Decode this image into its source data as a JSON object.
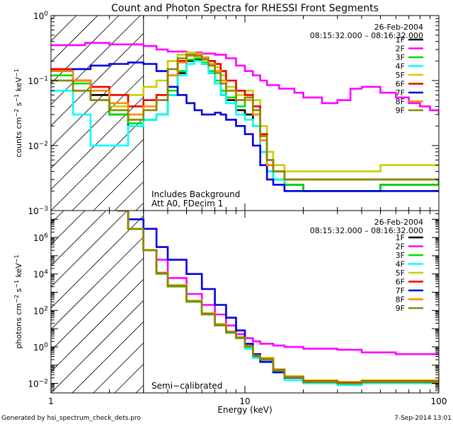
{
  "chart_data": [
    {
      "type": "line",
      "title": "Count and Photon Spectra for RHESSI Front Segments",
      "xlabel": "Energy (keV)",
      "ylabel": "counts cm^-2 s^-1 keV^-1",
      "ylabel_parts": {
        "base": "counts cm",
        "e1": "−2",
        "mid": " s",
        "e2": "−1",
        "tail": " keV",
        "e3": "−1"
      },
      "xscale": "log",
      "yscale": "log",
      "xlim": [
        1,
        100
      ],
      "ylim": [
        0.001,
        1
      ],
      "y_ticks": [
        {
          "base": "10",
          "exp": "−3"
        },
        {
          "base": "10",
          "exp": "−2"
        },
        {
          "base": "10",
          "exp": "−1"
        },
        {
          "base": "10",
          "exp": "0"
        }
      ],
      "x_ticks": [],
      "date": "26-Feb-2004",
      "time_range": "08:15:32.000 – 08:16:32.000",
      "annotations": [
        "Includes Background",
        "Att A0, FDecim 1"
      ],
      "legend_position": "top-right",
      "hatch_max_energy": 3,
      "series": [
        {
          "name": "1F",
          "color": "#000000",
          "x": [
            1,
            1.3,
            1.6,
            2,
            2.5,
            3,
            3.5,
            4,
            4.5,
            5,
            5.5,
            6,
            6.5,
            7,
            7.5,
            8,
            9,
            10,
            11,
            12,
            13,
            14,
            16,
            20,
            30,
            50,
            100
          ],
          "y": [
            0.15,
            0.1,
            0.06,
            0.03,
            0.02,
            0.025,
            0.03,
            0.06,
            0.13,
            0.2,
            0.21,
            0.18,
            0.13,
            0.09,
            0.06,
            0.05,
            0.035,
            0.03,
            0.02,
            0.008,
            0.004,
            0.003,
            0.0025,
            0.002,
            0.002,
            0.0025,
            0.003
          ]
        },
        {
          "name": "2F",
          "color": "#ff00ff",
          "x": [
            1,
            1.5,
            2,
            3,
            3.5,
            4,
            5,
            6,
            7,
            8,
            9,
            10,
            11,
            12,
            13,
            15,
            18,
            20,
            25,
            30,
            35,
            40,
            50,
            60,
            70,
            80,
            90,
            100
          ],
          "y": [
            0.35,
            0.38,
            0.36,
            0.34,
            0.3,
            0.28,
            0.27,
            0.26,
            0.25,
            0.22,
            0.17,
            0.14,
            0.12,
            0.1,
            0.085,
            0.075,
            0.065,
            0.055,
            0.045,
            0.05,
            0.075,
            0.08,
            0.065,
            0.055,
            0.045,
            0.04,
            0.035,
            0.03
          ]
        },
        {
          "name": "3F",
          "color": "#00dd00",
          "x": [
            1,
            1.3,
            1.6,
            2,
            2.5,
            3,
            3.5,
            4,
            4.5,
            5,
            5.5,
            6,
            6.5,
            7,
            7.5,
            8,
            9,
            10,
            11,
            12,
            13,
            14,
            16,
            20,
            30,
            50,
            100
          ],
          "y": [
            0.12,
            0.09,
            0.05,
            0.03,
            0.022,
            0.025,
            0.03,
            0.07,
            0.14,
            0.21,
            0.22,
            0.19,
            0.14,
            0.1,
            0.07,
            0.055,
            0.04,
            0.05,
            0.03,
            0.012,
            0.005,
            0.003,
            0.0025,
            0.002,
            0.002,
            0.0025,
            0.003
          ]
        },
        {
          "name": "4F",
          "color": "#00ffff",
          "x": [
            1,
            1.3,
            1.6,
            2,
            2.5,
            3,
            3.5,
            4,
            4.5,
            5,
            5.5,
            6,
            6.5,
            7,
            7.5,
            8,
            9,
            10,
            11,
            12,
            13,
            14,
            16,
            20,
            30,
            50,
            100
          ],
          "y": [
            0.07,
            0.03,
            0.01,
            0.01,
            0.02,
            0.025,
            0.03,
            0.06,
            0.12,
            0.18,
            0.2,
            0.18,
            0.13,
            0.09,
            0.06,
            0.045,
            0.03,
            0.025,
            0.02,
            0.008,
            0.004,
            0.003,
            0.002,
            0.002,
            0.002,
            0.002,
            0.002
          ]
        },
        {
          "name": "5F",
          "color": "#cccc00",
          "x": [
            1,
            1.3,
            1.6,
            2,
            2.5,
            3,
            3.5,
            4,
            4.5,
            5,
            5.5,
            6,
            6.5,
            7,
            7.5,
            8,
            9,
            10,
            11,
            12,
            13,
            14,
            16,
            20,
            30,
            50,
            100
          ],
          "y": [
            0.1,
            0.07,
            0.05,
            0.04,
            0.06,
            0.08,
            0.1,
            0.2,
            0.25,
            0.27,
            0.26,
            0.23,
            0.2,
            0.16,
            0.12,
            0.08,
            0.06,
            0.07,
            0.05,
            0.02,
            0.008,
            0.005,
            0.004,
            0.004,
            0.004,
            0.005,
            0.005
          ]
        },
        {
          "name": "6F",
          "color": "#ee0000",
          "x": [
            1,
            1.3,
            1.6,
            2,
            2.5,
            3,
            3.5,
            4,
            4.5,
            5,
            5.5,
            6,
            6.5,
            7,
            7.5,
            8,
            9,
            10,
            11,
            12,
            13,
            14,
            16,
            20,
            30,
            50,
            100
          ],
          "y": [
            0.15,
            0.1,
            0.08,
            0.06,
            0.04,
            0.05,
            0.06,
            0.12,
            0.2,
            0.24,
            0.24,
            0.22,
            0.2,
            0.18,
            0.14,
            0.1,
            0.07,
            0.06,
            0.04,
            0.015,
            0.006,
            0.004,
            0.003,
            0.003,
            0.003,
            0.003,
            0.003
          ]
        },
        {
          "name": "7F",
          "color": "#0000dd",
          "x": [
            1,
            1.3,
            1.6,
            2,
            2.5,
            3,
            3.5,
            4,
            4.5,
            5,
            5.5,
            6,
            6.5,
            7,
            7.5,
            8,
            9,
            10,
            11,
            12,
            13,
            14,
            16,
            20,
            30,
            50,
            100
          ],
          "y": [
            0.14,
            0.15,
            0.17,
            0.18,
            0.19,
            0.18,
            0.14,
            0.08,
            0.06,
            0.045,
            0.035,
            0.03,
            0.03,
            0.032,
            0.03,
            0.025,
            0.02,
            0.015,
            0.01,
            0.005,
            0.003,
            0.0025,
            0.002,
            0.002,
            0.002,
            0.002,
            0.002
          ]
        },
        {
          "name": "8F",
          "color": "#ff8800",
          "x": [
            1,
            1.3,
            1.6,
            2,
            2.5,
            3,
            3.5,
            4,
            4.5,
            5,
            5.5,
            6,
            6.5,
            7,
            7.5,
            8,
            9,
            10,
            11,
            12,
            13,
            14,
            16,
            20,
            30,
            50,
            100
          ],
          "y": [
            0.14,
            0.1,
            0.07,
            0.045,
            0.03,
            0.04,
            0.05,
            0.12,
            0.19,
            0.24,
            0.25,
            0.22,
            0.18,
            0.14,
            0.1,
            0.07,
            0.05,
            0.05,
            0.03,
            0.012,
            0.005,
            0.004,
            0.003,
            0.003,
            0.003,
            0.003,
            0.003
          ]
        },
        {
          "name": "9F",
          "color": "#888800",
          "x": [
            1,
            1.3,
            1.6,
            2,
            2.5,
            3,
            3.5,
            4,
            4.5,
            5,
            5.5,
            6,
            6.5,
            7,
            7.5,
            8,
            9,
            10,
            11,
            12,
            13,
            14,
            16,
            20,
            30,
            50,
            100
          ],
          "y": [
            0.1,
            0.07,
            0.05,
            0.035,
            0.025,
            0.035,
            0.05,
            0.15,
            0.22,
            0.25,
            0.24,
            0.21,
            0.17,
            0.13,
            0.09,
            0.07,
            0.05,
            0.055,
            0.035,
            0.014,
            0.006,
            0.004,
            0.003,
            0.003,
            0.003,
            0.003,
            0.003
          ]
        }
      ]
    },
    {
      "type": "line",
      "title": "",
      "xlabel": "Energy (keV)",
      "ylabel": "photons cm^-2 s^-1 keV^-1",
      "ylabel_parts": {
        "base": "photons cm",
        "e1": "−2",
        "mid": " s",
        "e2": "−1",
        "tail": " keV",
        "e3": "−1"
      },
      "xscale": "log",
      "yscale": "log",
      "xlim": [
        1,
        100
      ],
      "ylim": [
        0.003,
        30000000
      ],
      "y_ticks": [
        {
          "base": "10",
          "exp": "−2"
        },
        {
          "base": "10",
          "exp": "0"
        },
        {
          "base": "10",
          "exp": "2"
        },
        {
          "base": "10",
          "exp": "4"
        },
        {
          "base": "10",
          "exp": "6"
        }
      ],
      "x_ticks": [
        "1",
        "10",
        "100"
      ],
      "date": "26-Feb-2004",
      "time_range": "08:15:32.000 – 08:16:32.000",
      "annotations": [
        "Semi−calibrated"
      ],
      "legend_position": "top-right",
      "hatch_max_energy": 3,
      "series": [
        {
          "name": "1F",
          "color": "#000000",
          "x": [
            2.2,
            2.5,
            3,
            3.5,
            4,
            5,
            6,
            7,
            8,
            9,
            10,
            11,
            12,
            14,
            16,
            20,
            30,
            40,
            60,
            100
          ],
          "y": [
            30000000,
            3000000,
            200000,
            10000,
            2000,
            300,
            60,
            15,
            6,
            3,
            1,
            0.3,
            0.2,
            0.05,
            0.02,
            0.012,
            0.01,
            0.012,
            0.012,
            0.015
          ]
        },
        {
          "name": "2F",
          "color": "#ff00ff",
          "x": [
            2.2,
            2.5,
            3,
            3.5,
            4,
            5,
            6,
            7,
            8,
            9,
            10,
            11,
            12,
            14,
            16,
            20,
            30,
            40,
            60,
            100
          ],
          "y": [
            30000000,
            3000000,
            200000,
            60000,
            6000,
            800,
            200,
            60,
            15,
            5,
            3,
            2,
            1.5,
            1.2,
            1,
            0.8,
            0.7,
            0.5,
            0.4,
            0.35
          ]
        },
        {
          "name": "3F",
          "color": "#00dd00",
          "x": [
            2.2,
            2.5,
            3,
            3.5,
            4,
            5,
            6,
            7,
            8,
            9,
            10,
            11,
            12,
            14,
            16,
            20,
            30,
            40,
            60,
            100
          ],
          "y": [
            30000000,
            3000000,
            200000,
            10000,
            2000,
            300,
            60,
            15,
            6,
            3,
            1,
            0.35,
            0.2,
            0.05,
            0.02,
            0.012,
            0.01,
            0.012,
            0.012,
            0.015
          ]
        },
        {
          "name": "4F",
          "color": "#00ffff",
          "x": [
            2.2,
            2.5,
            3,
            3.5,
            4,
            5,
            6,
            7,
            8,
            9,
            10,
            11,
            12,
            14,
            16,
            20,
            30,
            40,
            60,
            100
          ],
          "y": [
            30000000,
            3000000,
            200000,
            10000,
            2000,
            300,
            60,
            15,
            6,
            3,
            0.8,
            0.25,
            0.15,
            0.04,
            0.015,
            0.01,
            0.008,
            0.01,
            0.01,
            0.012
          ]
        },
        {
          "name": "5F",
          "color": "#cccc00",
          "x": [
            2.2,
            2.5,
            3,
            3.5,
            4,
            5,
            6,
            7,
            8,
            9,
            10,
            11,
            12,
            14,
            16,
            20,
            30,
            40,
            60,
            100
          ],
          "y": [
            30000000,
            3000000,
            200000,
            12000,
            2500,
            350,
            70,
            18,
            7,
            3.5,
            1.2,
            0.4,
            0.25,
            0.06,
            0.025,
            0.015,
            0.012,
            0.015,
            0.015,
            0.02
          ]
        },
        {
          "name": "6F",
          "color": "#ee0000",
          "x": [
            2.2,
            2.5,
            3,
            3.5,
            4,
            5,
            6,
            7,
            8,
            9,
            10,
            11,
            12,
            14,
            16,
            20,
            30,
            40,
            60,
            100
          ],
          "y": [
            30000000,
            3000000,
            200000,
            11000,
            2200,
            320,
            65,
            16,
            6.5,
            3.2,
            1.1,
            0.35,
            0.22,
            0.055,
            0.022,
            0.013,
            0.011,
            0.013,
            0.013,
            0.016
          ]
        },
        {
          "name": "7F",
          "color": "#0000dd",
          "x": [
            2.2,
            2.5,
            3,
            3.5,
            4,
            5,
            6,
            7,
            8,
            9,
            10,
            11,
            12,
            14,
            16,
            20,
            30,
            40,
            60,
            100
          ],
          "y": [
            30000000,
            10000000,
            3000000,
            300000,
            60000,
            10000,
            1500,
            200,
            40,
            8,
            1.5,
            0.4,
            0.15,
            0.04,
            0.02,
            0.012,
            0.01,
            0.012,
            0.012,
            0.015
          ]
        },
        {
          "name": "8F",
          "color": "#ff8800",
          "x": [
            2.2,
            2.5,
            3,
            3.5,
            4,
            5,
            6,
            7,
            8,
            9,
            10,
            11,
            12,
            14,
            16,
            20,
            30,
            40,
            60,
            100
          ],
          "y": [
            30000000,
            3000000,
            200000,
            10500,
            2100,
            310,
            62,
            15.5,
            6.2,
            3.1,
            1.05,
            0.33,
            0.21,
            0.052,
            0.021,
            0.012,
            0.01,
            0.012,
            0.012,
            0.015
          ]
        },
        {
          "name": "9F",
          "color": "#888800",
          "x": [
            2.2,
            2.5,
            3,
            3.5,
            4,
            5,
            6,
            7,
            8,
            9,
            10,
            11,
            12,
            14,
            16,
            20,
            30,
            40,
            60,
            100
          ],
          "y": [
            30000000,
            3000000,
            200000,
            10800,
            2150,
            315,
            63,
            15.8,
            6.3,
            3.15,
            1.08,
            0.34,
            0.21,
            0.053,
            0.021,
            0.012,
            0.01,
            0.012,
            0.012,
            0.015
          ]
        }
      ]
    }
  ],
  "footer": {
    "generated_by": "Generated by hsi_spectrum_check_dets.pro",
    "timestamp": "7-Sep-2014 13:01"
  }
}
